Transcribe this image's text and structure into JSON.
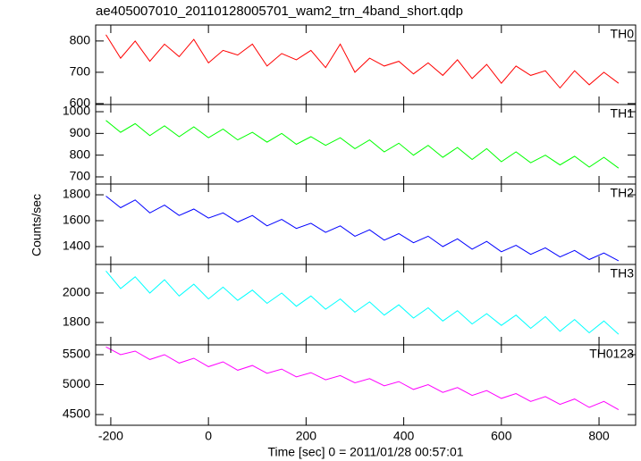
{
  "chart_data": {
    "type": "line",
    "title": "ae405007010_20110128005701_wam2_trn_4band_short.qdp",
    "xlabel": "Time [sec] 0 = 2011/01/28 00:57:01",
    "ylabel": "Counts/sec",
    "x": [
      -210,
      -180,
      -150,
      -120,
      -90,
      -60,
      -30,
      0,
      30,
      60,
      90,
      120,
      150,
      180,
      210,
      240,
      270,
      300,
      330,
      360,
      390,
      420,
      450,
      480,
      510,
      540,
      570,
      600,
      630,
      660,
      690,
      720,
      750,
      780,
      810,
      840
    ],
    "xlim": [
      -231,
      875
    ],
    "xticks": [
      -200,
      0,
      200,
      400,
      600,
      800
    ],
    "series": [
      {
        "name": "TH0",
        "color": "#ff0000",
        "ylim": [
          597,
          851
        ],
        "yticks": [
          600,
          700,
          800
        ],
        "values": [
          820,
          745,
          800,
          735,
          790,
          750,
          805,
          730,
          770,
          755,
          790,
          720,
          760,
          740,
          770,
          715,
          790,
          700,
          745,
          720,
          735,
          695,
          730,
          690,
          740,
          680,
          725,
          665,
          720,
          690,
          705,
          650,
          705,
          660,
          700,
          665
        ]
      },
      {
        "name": "TH1",
        "color": "#00ff00",
        "ylim": [
          667,
          1033
        ],
        "yticks": [
          700,
          800,
          900,
          1000
        ],
        "values": [
          960,
          905,
          945,
          890,
          935,
          885,
          930,
          880,
          920,
          870,
          905,
          860,
          900,
          850,
          885,
          845,
          880,
          830,
          870,
          815,
          855,
          800,
          845,
          790,
          835,
          780,
          830,
          770,
          815,
          765,
          800,
          755,
          795,
          745,
          790,
          740
        ]
      },
      {
        "name": "TH2",
        "color": "#0000ff",
        "ylim": [
          1262,
          1883
        ],
        "yticks": [
          1400,
          1600,
          1800
        ],
        "values": [
          1790,
          1700,
          1760,
          1660,
          1720,
          1640,
          1690,
          1620,
          1660,
          1590,
          1640,
          1560,
          1610,
          1540,
          1580,
          1510,
          1560,
          1480,
          1530,
          1450,
          1500,
          1430,
          1480,
          1400,
          1460,
          1380,
          1440,
          1360,
          1410,
          1340,
          1390,
          1320,
          1370,
          1300,
          1350,
          1290
        ]
      },
      {
        "name": "TH3",
        "color": "#00ffff",
        "ylim": [
          1648,
          2194
        ],
        "yticks": [
          1800,
          2000
        ],
        "values": [
          2150,
          2030,
          2110,
          2000,
          2090,
          1980,
          2060,
          1960,
          2040,
          1950,
          2020,
          1930,
          2000,
          1910,
          1980,
          1890,
          1960,
          1870,
          1940,
          1850,
          1920,
          1830,
          1900,
          1810,
          1880,
          1790,
          1860,
          1780,
          1850,
          1760,
          1840,
          1740,
          1820,
          1730,
          1810,
          1720
        ]
      },
      {
        "name": "TH0123",
        "color": "#ff00ff",
        "ylim": [
          4321,
          5664
        ],
        "yticks": [
          4500,
          5000,
          5500
        ],
        "values": [
          5630,
          5500,
          5560,
          5420,
          5500,
          5360,
          5440,
          5300,
          5380,
          5240,
          5320,
          5190,
          5260,
          5130,
          5200,
          5080,
          5150,
          5030,
          5100,
          4980,
          5050,
          4920,
          5000,
          4870,
          4950,
          4820,
          4900,
          4770,
          4850,
          4720,
          4800,
          4670,
          4760,
          4620,
          4720,
          4580
        ]
      }
    ]
  }
}
